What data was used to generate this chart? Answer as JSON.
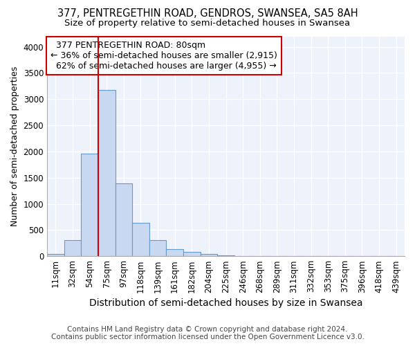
{
  "title": "377, PENTREGETHIN ROAD, GENDROS, SWANSEA, SA5 8AH",
  "subtitle": "Size of property relative to semi-detached houses in Swansea",
  "xlabel": "Distribution of semi-detached houses by size in Swansea",
  "ylabel": "Number of semi-detached properties",
  "footer_line1": "Contains HM Land Registry data © Crown copyright and database right 2024.",
  "footer_line2": "Contains public sector information licensed under the Open Government Licence v3.0.",
  "bar_labels": [
    "11sqm",
    "32sqm",
    "54sqm",
    "75sqm",
    "97sqm",
    "118sqm",
    "139sqm",
    "161sqm",
    "182sqm",
    "204sqm",
    "225sqm",
    "246sqm",
    "268sqm",
    "289sqm",
    "311sqm",
    "332sqm",
    "353sqm",
    "375sqm",
    "396sqm",
    "418sqm",
    "439sqm"
  ],
  "bar_values": [
    45,
    310,
    1960,
    3170,
    1390,
    640,
    300,
    140,
    80,
    40,
    15,
    8,
    5,
    5,
    3,
    2,
    2,
    2,
    1,
    1,
    1
  ],
  "bar_color": "#c8d8f0",
  "bar_edge_color": "#6699cc",
  "property_label": "377 PENTREGETHIN ROAD: 80sqm",
  "pct_smaller": 36,
  "num_smaller": "2,915",
  "pct_larger": 62,
  "num_larger": "4,955",
  "vline_index": 3,
  "vline_color": "#cc0000",
  "annotation_box_color": "#cc0000",
  "ylim": [
    0,
    4200
  ],
  "yticks": [
    0,
    500,
    1000,
    1500,
    2000,
    2500,
    3000,
    3500,
    4000
  ],
  "title_fontsize": 10.5,
  "subtitle_fontsize": 9.5,
  "xlabel_fontsize": 10,
  "ylabel_fontsize": 9,
  "tick_fontsize": 8.5,
  "annotation_fontsize": 9,
  "footer_fontsize": 7.5,
  "bg_color": "#ffffff",
  "plot_bg_color": "#eef2fb"
}
